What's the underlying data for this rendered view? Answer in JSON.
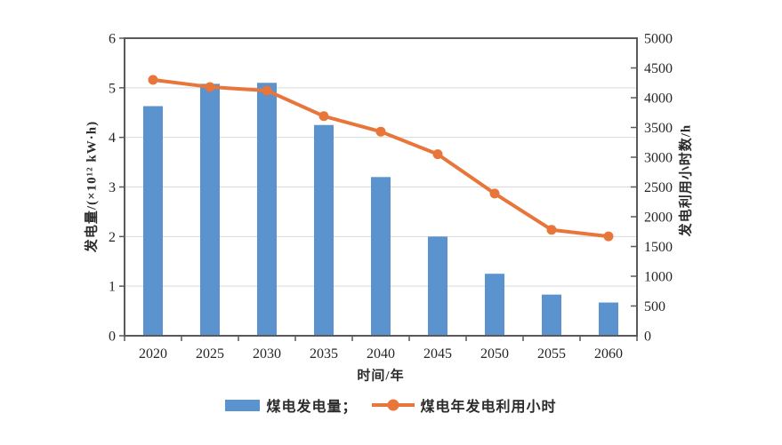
{
  "chart_data": {
    "type": "combo",
    "categories": [
      "2020",
      "2025",
      "2030",
      "2035",
      "2040",
      "2045",
      "2050",
      "2055",
      "2060"
    ],
    "series": [
      {
        "name": "煤电发电量",
        "type": "bar",
        "axis": "left",
        "color": "#5B93CE",
        "values": [
          4.63,
          5.08,
          5.1,
          4.25,
          3.2,
          2.0,
          1.25,
          0.83,
          0.67
        ]
      },
      {
        "name": "煤电年发电利用小时",
        "type": "line",
        "axis": "right",
        "color": "#E8763B",
        "values": [
          4300,
          4180,
          4120,
          3690,
          3430,
          3050,
          2390,
          1780,
          1670
        ]
      }
    ],
    "title": "",
    "xlabel": "时间/年",
    "ylabel_left": "发电量/(×10¹² kW·h)",
    "ylabel_right": "发电利用小时数/h",
    "ylim_left": [
      0,
      6
    ],
    "ylim_right": [
      0,
      5000
    ],
    "y_left_ticks": [
      "0",
      "1",
      "2",
      "3",
      "4",
      "5",
      "6"
    ],
    "y_right_ticks": [
      "0",
      "500",
      "1000",
      "1500",
      "2000",
      "2500",
      "3000",
      "3500",
      "4000",
      "4500",
      "5000"
    ],
    "grid": true,
    "legend_position": "bottom",
    "legend": [
      "煤电发电量；",
      "煤电年发电利用小时"
    ],
    "colors": {
      "bar": "#5B93CE",
      "line": "#E8763B",
      "frame": "#595959",
      "gridline": "#d9d9d9",
      "text": "#262626"
    }
  }
}
